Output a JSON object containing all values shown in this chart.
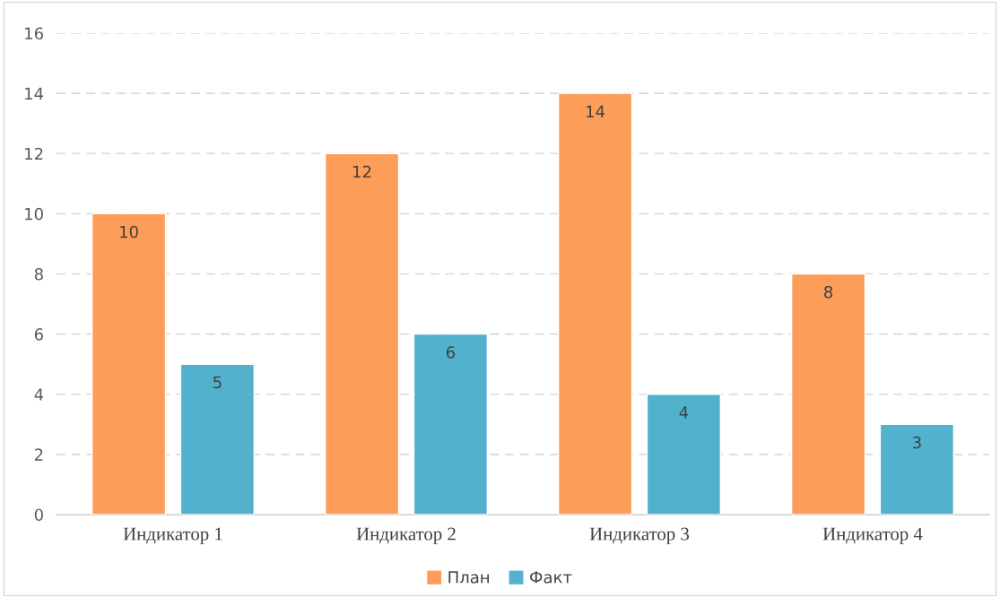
{
  "chart_data": {
    "type": "bar",
    "categories": [
      "Индикатор 1",
      "Индикатор 2",
      "Индикатор 3",
      "Индикатор 4"
    ],
    "series": [
      {
        "name": "План",
        "color": "#fc9d5a",
        "values": [
          10,
          12,
          14,
          8
        ]
      },
      {
        "name": "Факт",
        "color": "#52b1cc",
        "values": [
          5,
          6,
          4,
          3
        ]
      }
    ],
    "ylim": [
      0,
      16
    ],
    "yticks": [
      0,
      2,
      4,
      6,
      8,
      10,
      12,
      14,
      16
    ],
    "grid": "y",
    "legend": "bottom",
    "data_labels": true
  }
}
